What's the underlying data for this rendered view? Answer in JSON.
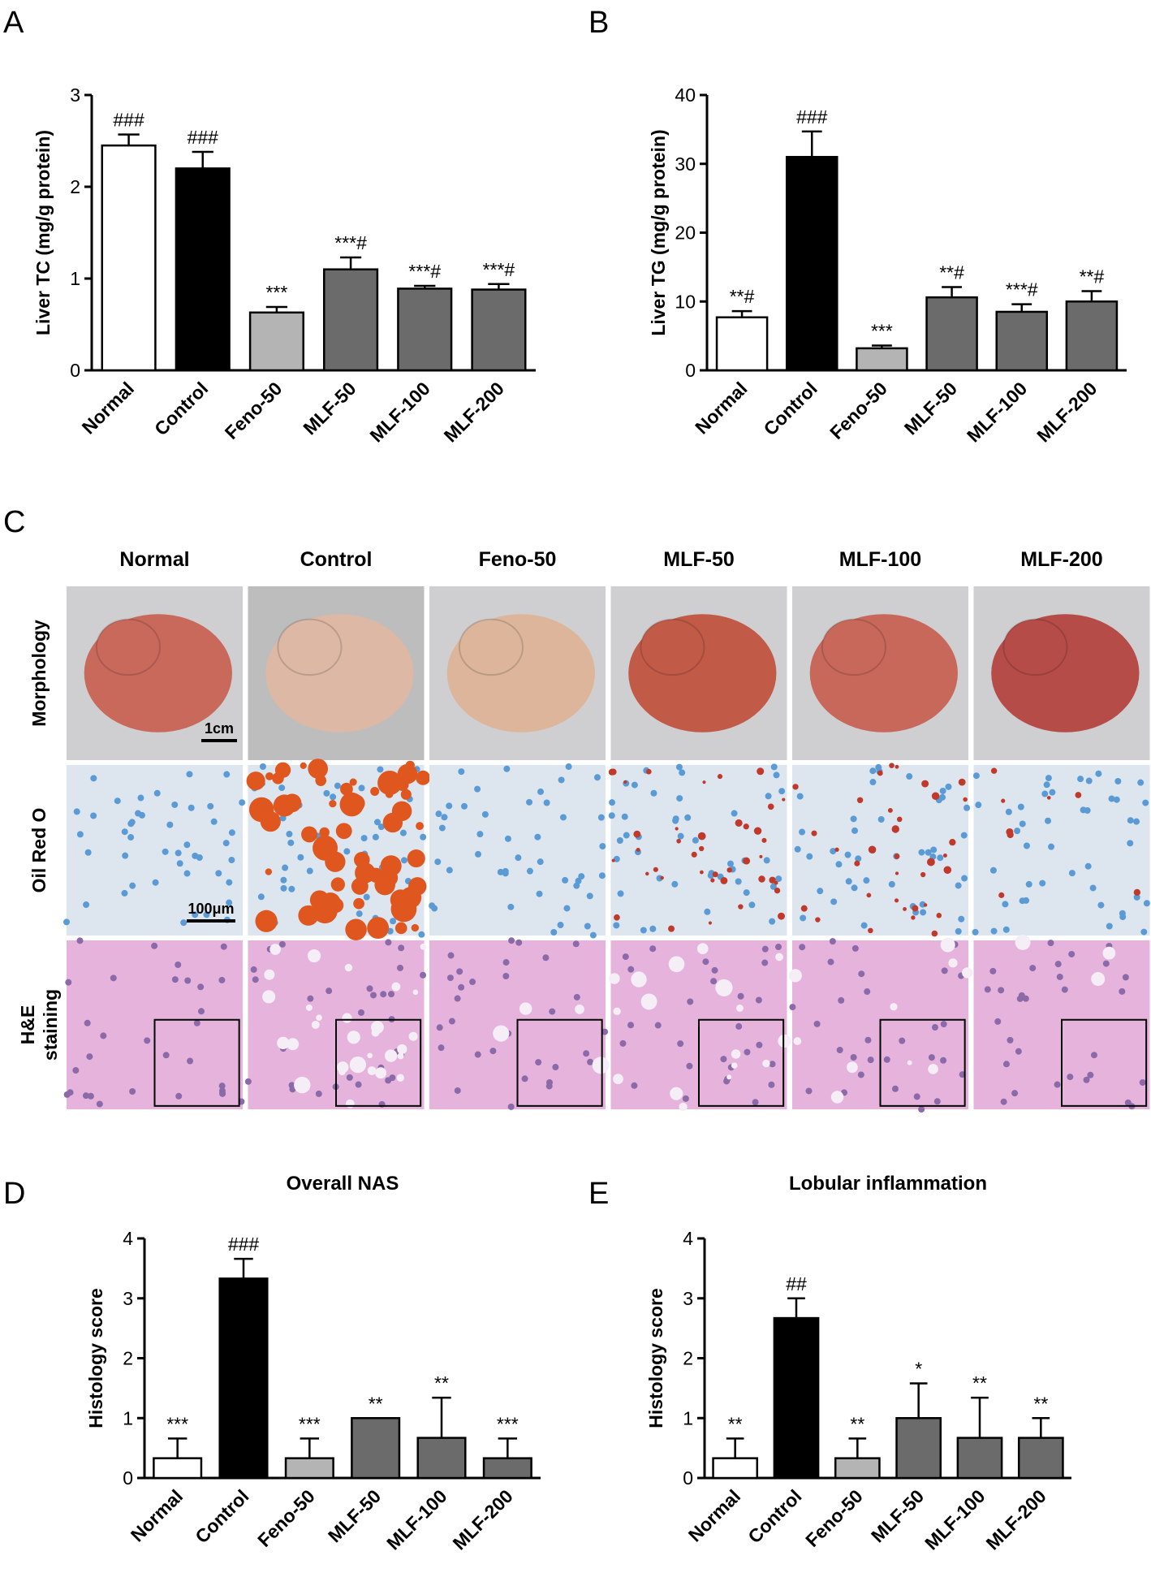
{
  "chart_data": [
    {
      "type": "bar",
      "panel": "A",
      "ylabel": "Liver TC (mg/g protein)",
      "categories": [
        "Normal",
        "Control",
        "Feno-50",
        "MLF-50",
        "MLF-100",
        "MLF-200"
      ],
      "values": [
        2.45,
        2.2,
        0.63,
        1.1,
        0.89,
        0.88
      ],
      "errors": [
        0.12,
        0.18,
        0.06,
        0.13,
        0.03,
        0.06
      ],
      "value_labels": [
        "###",
        "###",
        "***",
        "***#",
        "***#",
        "***#"
      ],
      "colors": [
        "#ffffff",
        "#000000",
        "#b4b4b4",
        "#6b6b6b",
        "#6b6b6b",
        "#6b6b6b"
      ],
      "ylim": [
        0,
        3
      ],
      "yticks": [
        0,
        1,
        2,
        3
      ]
    },
    {
      "type": "bar",
      "panel": "B",
      "ylabel": "Liver TG (mg/g protein)",
      "categories": [
        "Normal",
        "Control",
        "Feno-50",
        "MLF-50",
        "MLF-100",
        "MLF-200"
      ],
      "values": [
        7.7,
        31,
        3.2,
        10.6,
        8.5,
        10
      ],
      "errors": [
        0.9,
        3.7,
        0.4,
        1.5,
        1.1,
        1.5
      ],
      "value_labels": [
        "**#",
        "###",
        "***",
        "**#",
        "***#",
        "**#"
      ],
      "colors": [
        "#ffffff",
        "#000000",
        "#b4b4b4",
        "#6b6b6b",
        "#6b6b6b",
        "#6b6b6b"
      ],
      "ylim": [
        0,
        40
      ],
      "yticks": [
        0,
        10,
        20,
        30,
        40
      ]
    },
    {
      "type": "bar",
      "panel": "D",
      "title": "Overall NAS",
      "ylabel": "Histology score",
      "categories": [
        "Normal",
        "Control",
        "Feno-50",
        "MLF-50",
        "MLF-100",
        "MLF-200"
      ],
      "values": [
        0.33,
        3.33,
        0.33,
        1.0,
        0.67,
        0.33
      ],
      "errors": [
        0.33,
        0.33,
        0.33,
        0,
        0.67,
        0.33
      ],
      "value_labels": [
        "***",
        "###",
        "***",
        "**",
        "**",
        "***"
      ],
      "colors": [
        "#ffffff",
        "#000000",
        "#b4b4b4",
        "#6b6b6b",
        "#6b6b6b",
        "#6b6b6b"
      ],
      "ylim": [
        0,
        4
      ],
      "yticks": [
        0,
        1,
        2,
        3,
        4
      ]
    },
    {
      "type": "bar",
      "panel": "E",
      "title": "Lobular inflammation",
      "ylabel": "Histology score",
      "categories": [
        "Normal",
        "Control",
        "Feno-50",
        "MLF-50",
        "MLF-100",
        "MLF-200"
      ],
      "values": [
        0.33,
        2.67,
        0.33,
        1.0,
        0.67,
        0.67
      ],
      "errors": [
        0.33,
        0.33,
        0.33,
        0.58,
        0.67,
        0.33
      ],
      "value_labels": [
        "**",
        "##",
        "**",
        "*",
        "**",
        "**"
      ],
      "colors": [
        "#ffffff",
        "#000000",
        "#b4b4b4",
        "#6b6b6b",
        "#6b6b6b",
        "#6b6b6b"
      ],
      "ylim": [
        0,
        4
      ],
      "yticks": [
        0,
        1,
        2,
        3,
        4
      ]
    }
  ],
  "panel_c": {
    "label": "C",
    "columns": [
      "Normal",
      "Control",
      "Feno-50",
      "MLF-50",
      "MLF-100",
      "MLF-200"
    ],
    "rows": [
      [
        "Morphology"
      ],
      [
        "Oil Red O"
      ],
      [
        "H&E",
        "staining"
      ]
    ],
    "scale_bars": [
      "1cm",
      "100μm"
    ]
  }
}
